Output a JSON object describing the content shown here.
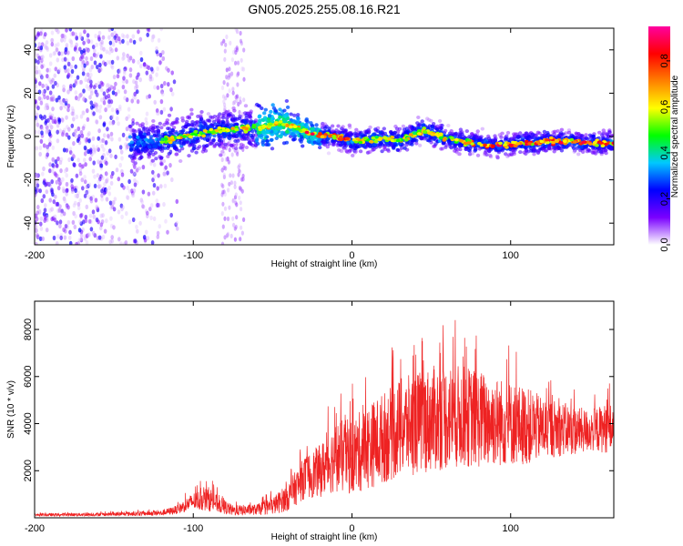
{
  "title": "GN05.2025.255.08.16.R21",
  "chart_data": [
    {
      "type": "heatmap",
      "title": "GN05.2025.255.08.16.R21",
      "xlabel": "Height of straight line (km)",
      "ylabel": "Frequency (Hz)",
      "xlim": [
        -200,
        165
      ],
      "ylim": [
        -50,
        50
      ],
      "xticks": [
        "-200",
        "-100",
        "0",
        "100"
      ],
      "yticks": [
        "-40",
        "-20",
        "0",
        "20",
        "40"
      ],
      "colorbar": {
        "label": "Normalized spectral amplitude",
        "range": [
          0,
          0.95
        ],
        "ticks": [
          "0.0",
          "0.2",
          "0.4",
          "0.6",
          "0.8"
        ],
        "stops": [
          "#ffffff",
          "#7a00ff",
          "#0000ff",
          "#00c8ff",
          "#00ff00",
          "#ffff00",
          "#ff8000",
          "#ff0000",
          "#ff00a0"
        ]
      },
      "ridge": {
        "description": "dominant frequency track",
        "x": [
          -135,
          -120,
          -100,
          -80,
          -60,
          -45,
          -35,
          -25,
          -10,
          0,
          20,
          30,
          45,
          60,
          75,
          90,
          110,
          130,
          150,
          165
        ],
        "y": [
          -3,
          -2,
          1,
          3,
          4,
          6,
          4,
          1,
          0,
          -2,
          -1,
          -2,
          3,
          -1,
          -3,
          -4,
          -3,
          -2,
          -3,
          -3
        ]
      }
    },
    {
      "type": "line",
      "xlabel": "Height of straight line (km)",
      "ylabel": "SNR (10 * v/v)",
      "xlim": [
        -200,
        165
      ],
      "ylim": [
        0,
        9200
      ],
      "xticks": [
        "-200",
        "-100",
        "0",
        "100"
      ],
      "yticks": [
        "2000",
        "4000",
        "6000",
        "8000"
      ],
      "color": "#ee2222",
      "envelope": {
        "x": [
          -200,
          -150,
          -120,
          -110,
          -100,
          -90,
          -85,
          -75,
          -60,
          -50,
          -40,
          -30,
          -20,
          -10,
          0,
          10,
          20,
          30,
          40,
          50,
          60,
          70,
          80,
          90,
          100,
          110,
          120,
          130,
          140,
          150,
          160,
          165
        ],
        "mean": [
          120,
          150,
          200,
          350,
          700,
          800,
          600,
          300,
          350,
          500,
          900,
          1700,
          2000,
          2600,
          2600,
          3000,
          3400,
          3800,
          4000,
          4200,
          4300,
          4300,
          4200,
          4100,
          4000,
          3900,
          3800,
          3800,
          3700,
          3700,
          3800,
          3800
        ],
        "spread": [
          80,
          100,
          150,
          250,
          500,
          700,
          500,
          300,
          300,
          500,
          800,
          1200,
          1500,
          2000,
          2200,
          2400,
          2600,
          2800,
          2900,
          3000,
          3000,
          2900,
          2800,
          2600,
          2400,
          2200,
          1800,
          1600,
          1400,
          1200,
          1400,
          1400
        ]
      }
    }
  ]
}
